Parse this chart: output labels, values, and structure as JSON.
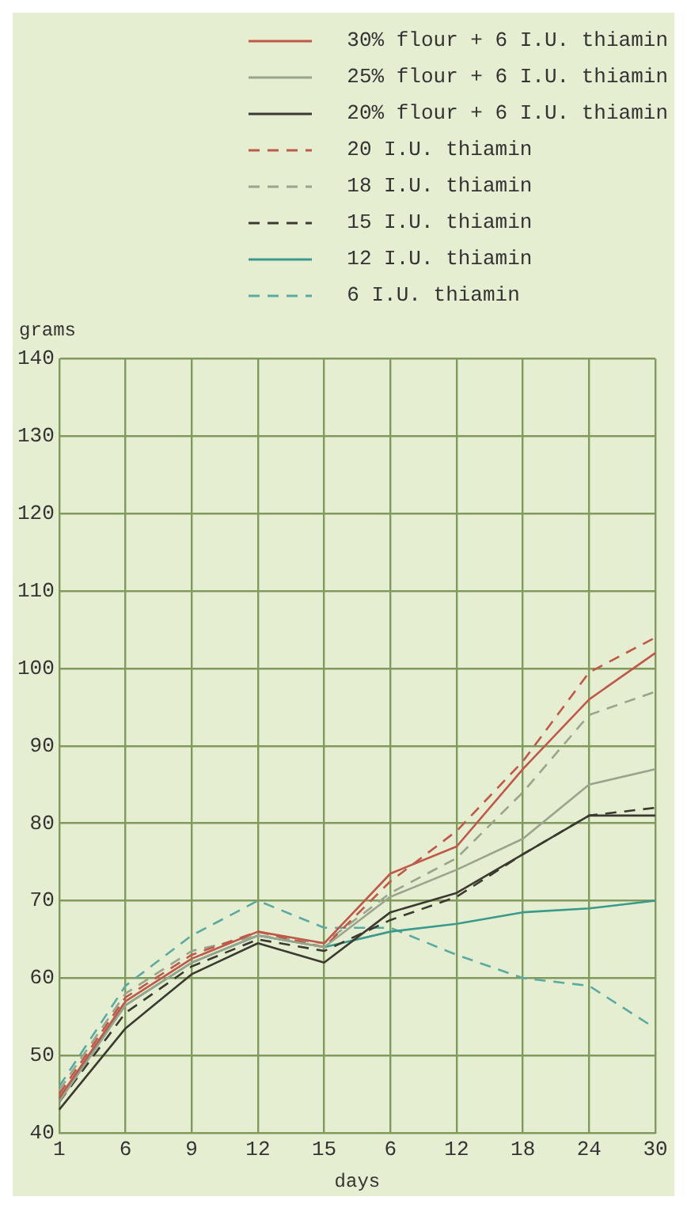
{
  "chart_data": {
    "type": "line",
    "xlabel": "days",
    "ylabel": "grams",
    "categories": [
      "1",
      "6",
      "9",
      "12",
      "15",
      "6",
      "12",
      "18",
      "24",
      "30"
    ],
    "ylim": [
      40,
      140
    ],
    "yticks": [
      40,
      50,
      60,
      70,
      80,
      90,
      100,
      110,
      120,
      130,
      140
    ],
    "grid": true,
    "legend": "top",
    "marker": "none",
    "series": [
      {
        "name": "30% flour + 6 I.U. thiamin",
        "color": "#c0584a",
        "line_style": "solid",
        "values": [
          44.5,
          57,
          62.5,
          66,
          64.5,
          73.5,
          77,
          87,
          96,
          102
        ]
      },
      {
        "name": "25% flour + 6 I.U. thiamin",
        "color": "#98a48c",
        "line_style": "solid",
        "values": [
          44,
          56.5,
          62,
          65.5,
          64,
          70.5,
          74,
          78,
          85,
          87
        ]
      },
      {
        "name": "20% flour + 6 I.U. thiamin",
        "color": "#3a3a30",
        "line_style": "solid",
        "values": [
          43,
          53.5,
          60.5,
          64.5,
          62,
          68.5,
          71,
          76,
          81,
          81
        ]
      },
      {
        "name": "20 I.U. thiamin",
        "color": "#c0584a",
        "line_style": "dashed",
        "values": [
          45,
          57.5,
          63,
          66,
          64,
          72.5,
          79,
          88,
          99.5,
          104
        ]
      },
      {
        "name": "18 I.U. thiamin",
        "color": "#98a48c",
        "line_style": "dashed",
        "values": [
          45.5,
          58,
          63.5,
          65.5,
          64.5,
          71,
          75.5,
          84,
          94,
          97
        ]
      },
      {
        "name": "15 I.U. thiamin",
        "color": "#3a3a30",
        "line_style": "dashed",
        "values": [
          44,
          55.5,
          61.5,
          65,
          63.5,
          67.5,
          70.5,
          76,
          81,
          82
        ]
      },
      {
        "name": "12 I.U. thiamin",
        "color": "#3a9a8c",
        "line_style": "solid",
        "values": [
          44.5,
          56.5,
          62,
          65.5,
          64,
          66,
          67,
          68.5,
          69,
          70
        ]
      },
      {
        "name": "6 I.U. thiamin",
        "color": "#5aaaa2",
        "line_style": "dashed",
        "values": [
          46,
          59,
          65.5,
          70,
          66.5,
          66.5,
          63,
          60,
          59,
          53.5
        ]
      }
    ]
  }
}
